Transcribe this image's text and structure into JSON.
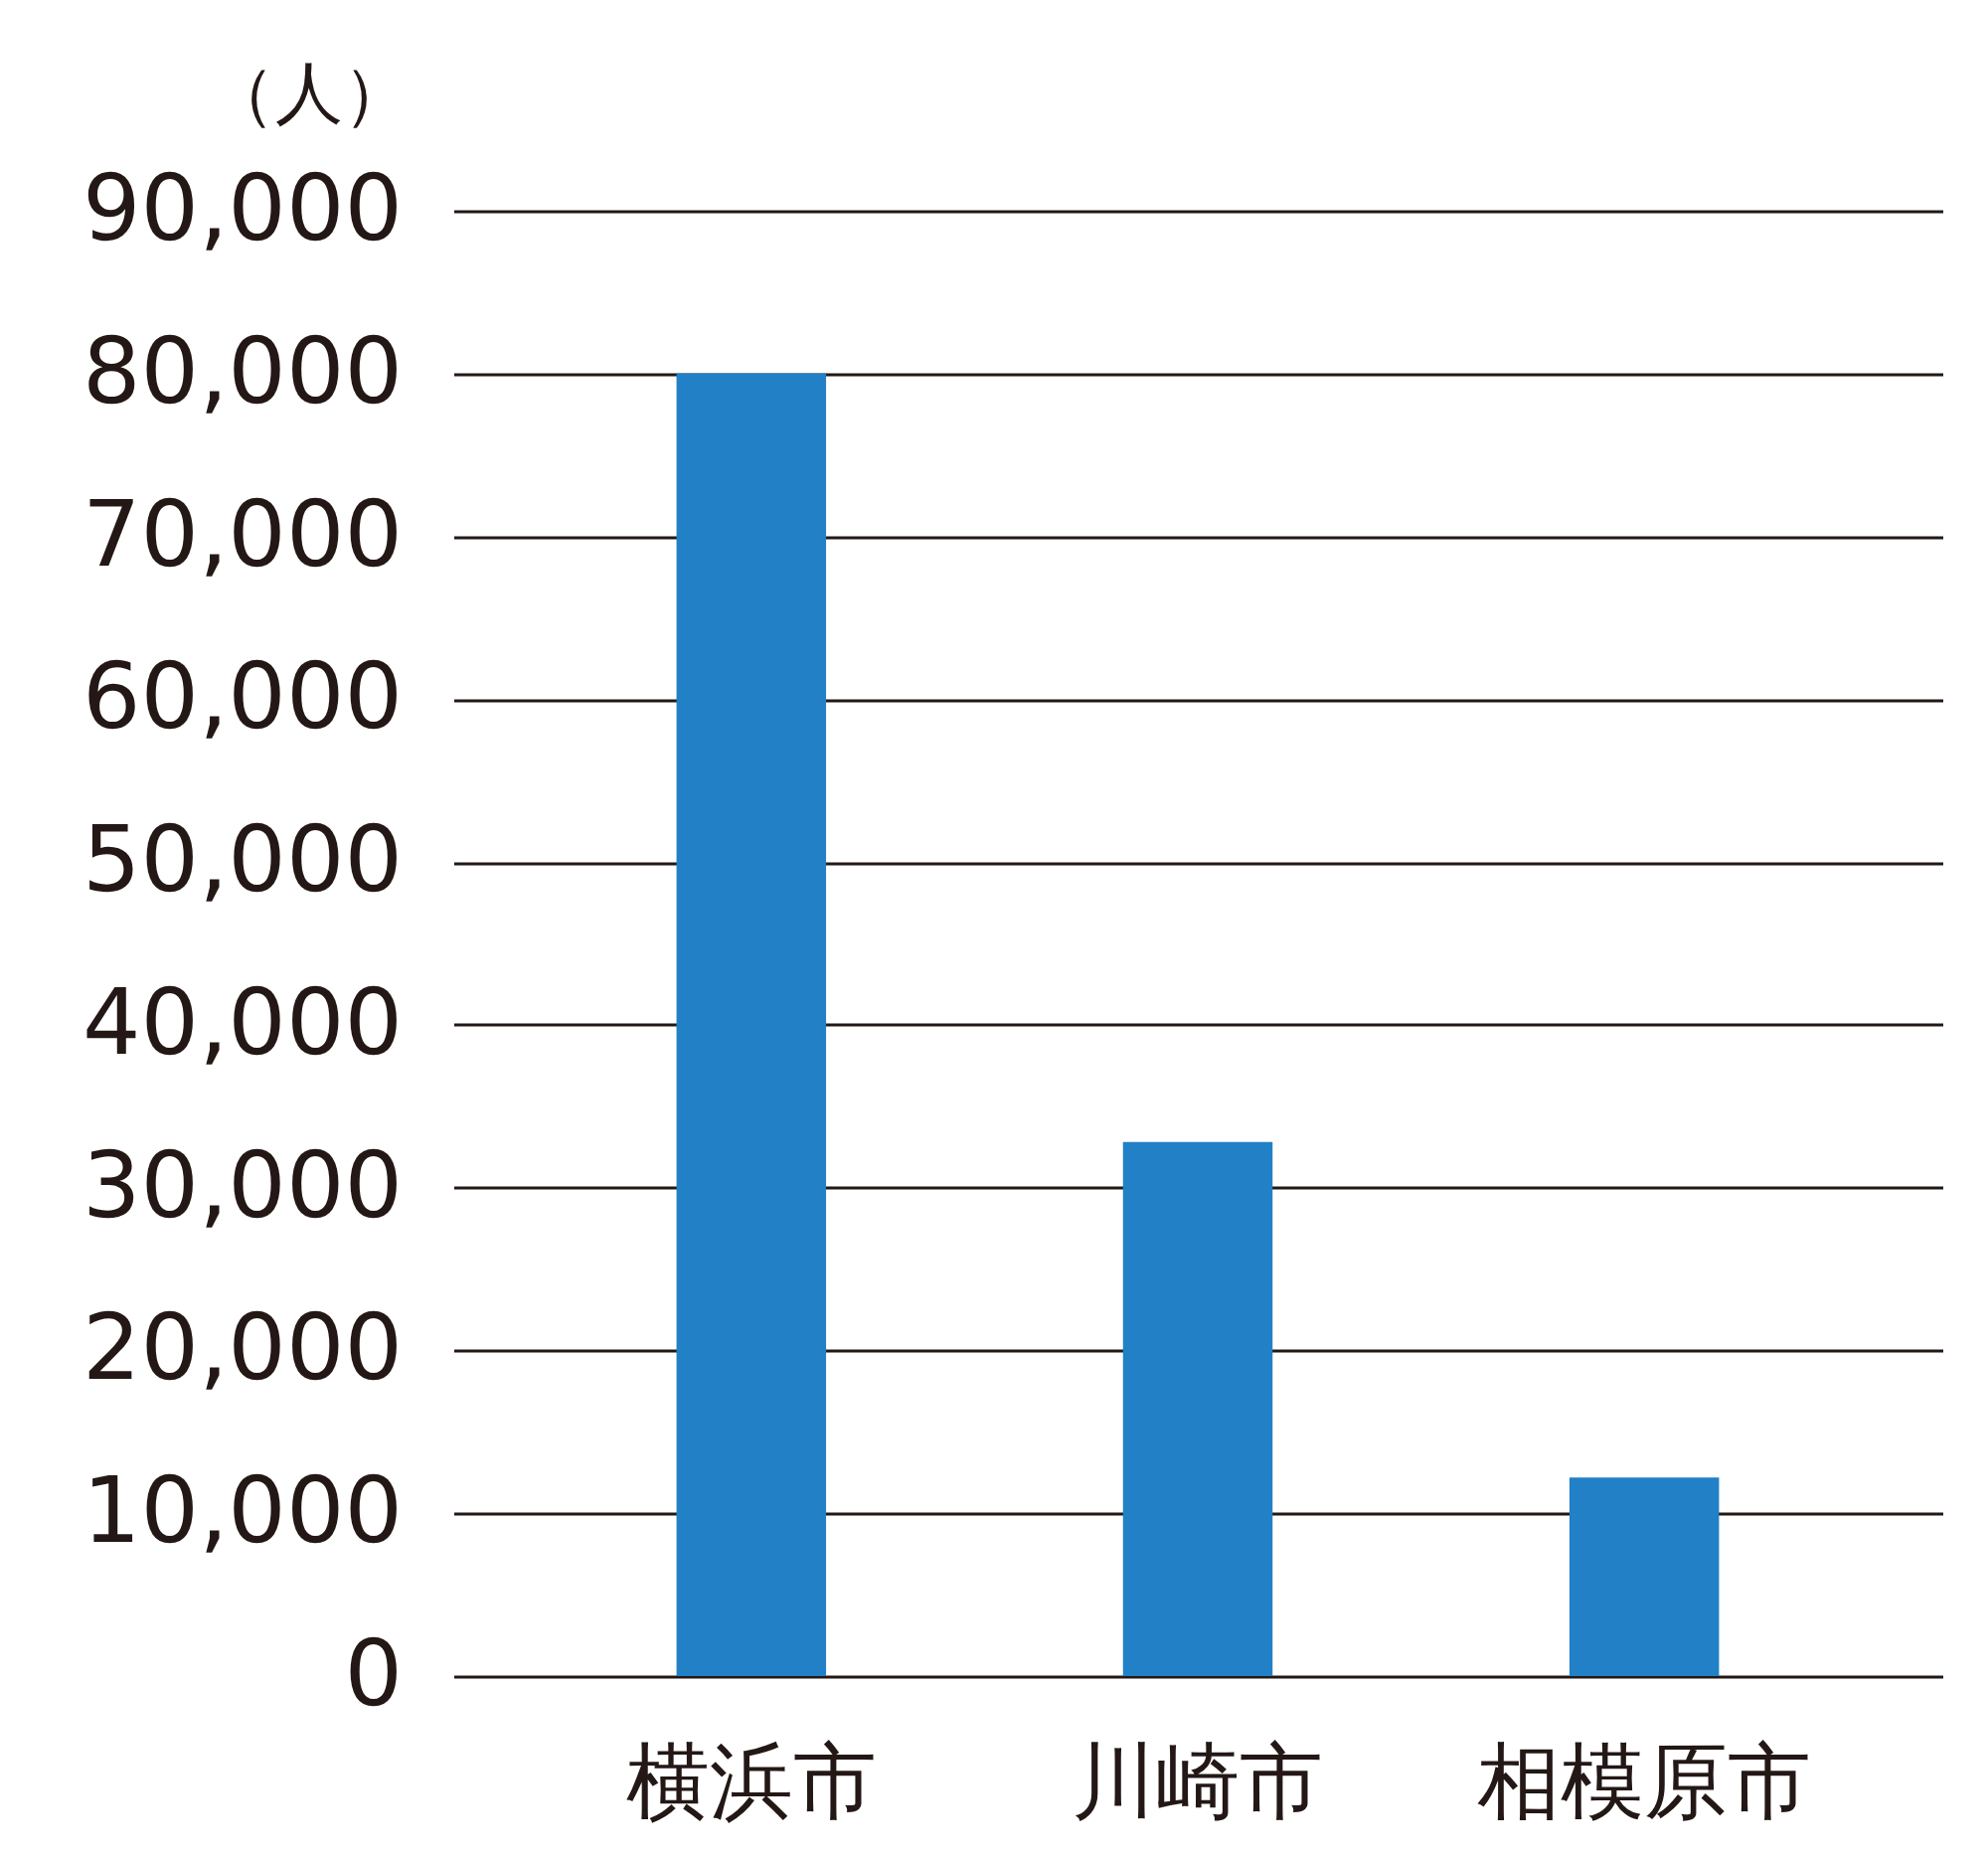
{
  "chart_data": {
    "type": "bar",
    "ylabel": "（人）",
    "categories": [
      "横浜市",
      "川崎市",
      "相模原市"
    ],
    "values": [
      80000,
      32800,
      12200
    ],
    "color": "#2180c6",
    "ylim": [
      0,
      90000
    ],
    "yticks": [
      0,
      {
        "value": 10000,
        "label": "10,000"
      },
      {
        "value": 20000,
        "label": "20,000"
      },
      {
        "value": 30000,
        "label": "30,000"
      },
      {
        "value": 40000,
        "label": "40,000"
      },
      {
        "value": 50000,
        "label": "50,000"
      },
      {
        "value": 60000,
        "label": "60,000"
      },
      {
        "value": 70000,
        "label": "70,000"
      },
      {
        "value": 80000,
        "label": "80,000"
      },
      {
        "value": 90000,
        "label": "90,000"
      }
    ],
    "grid": "y"
  }
}
